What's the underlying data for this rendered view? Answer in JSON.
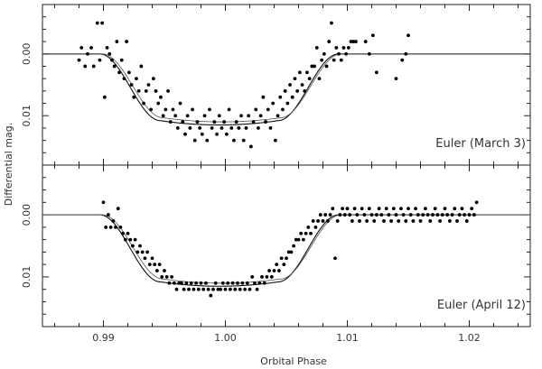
{
  "chart_data": {
    "type": "scatter",
    "xlabel": "Orbital Phase",
    "ylabel": "Differential mag.",
    "xlim": [
      0.985,
      1.025
    ],
    "x_ticks": [
      "0.99",
      "1.00",
      "1.01",
      "1.02"
    ],
    "x_tick_values": [
      0.99,
      1.0,
      1.01,
      1.02
    ],
    "y_inverted": true,
    "grid": false,
    "panels": [
      {
        "name": "Euler (March 3)",
        "ylim": [
          -0.008,
          0.018
        ],
        "y_ticks": [
          "0.00",
          "0.01"
        ],
        "y_tick_values": [
          0.0,
          0.01
        ],
        "model_depth": 0.0115,
        "model_depth_alt": 0.011,
        "points": [
          [
            0.988,
            0.001
          ],
          [
            0.9882,
            -0.001
          ],
          [
            0.9885,
            0.002
          ],
          [
            0.9887,
            0.0
          ],
          [
            0.989,
            -0.001
          ],
          [
            0.9892,
            0.002
          ],
          [
            0.9895,
            -0.005
          ],
          [
            0.9897,
            0.001
          ],
          [
            0.9899,
            -0.005
          ],
          [
            0.9901,
            0.007
          ],
          [
            0.9903,
            -0.001
          ],
          [
            0.9905,
            0.0
          ],
          [
            0.9907,
            0.001
          ],
          [
            0.9909,
            0.002
          ],
          [
            0.9911,
            -0.002
          ],
          [
            0.9913,
            0.003
          ],
          [
            0.9915,
            0.001
          ],
          [
            0.9917,
            0.004
          ],
          [
            0.9919,
            -0.002
          ],
          [
            0.9921,
            0.003
          ],
          [
            0.9923,
            0.005
          ],
          [
            0.9925,
            0.007
          ],
          [
            0.9927,
            0.004
          ],
          [
            0.9929,
            0.006
          ],
          [
            0.9931,
            0.002
          ],
          [
            0.9933,
            0.008
          ],
          [
            0.9935,
            0.006
          ],
          [
            0.9937,
            0.005
          ],
          [
            0.9939,
            0.009
          ],
          [
            0.9941,
            0.004
          ],
          [
            0.9943,
            0.006
          ],
          [
            0.9945,
            0.008
          ],
          [
            0.9947,
            0.007
          ],
          [
            0.9949,
            0.01
          ],
          [
            0.9951,
            0.009
          ],
          [
            0.9953,
            0.006
          ],
          [
            0.9955,
            0.011
          ],
          [
            0.9957,
            0.009
          ],
          [
            0.9959,
            0.01
          ],
          [
            0.9961,
            0.012
          ],
          [
            0.9963,
            0.008
          ],
          [
            0.9965,
            0.011
          ],
          [
            0.9967,
            0.013
          ],
          [
            0.9969,
            0.01
          ],
          [
            0.9971,
            0.012
          ],
          [
            0.9973,
            0.009
          ],
          [
            0.9975,
            0.014
          ],
          [
            0.9977,
            0.011
          ],
          [
            0.9979,
            0.012
          ],
          [
            0.9981,
            0.013
          ],
          [
            0.9983,
            0.01
          ],
          [
            0.9985,
            0.014
          ],
          [
            0.9987,
            0.009
          ],
          [
            0.9989,
            0.012
          ],
          [
            0.9991,
            0.011
          ],
          [
            0.9993,
            0.013
          ],
          [
            0.9995,
            0.01
          ],
          [
            0.9997,
            0.012
          ],
          [
            0.9999,
            0.011
          ],
          [
            1.0001,
            0.013
          ],
          [
            1.0003,
            0.009
          ],
          [
            1.0005,
            0.012
          ],
          [
            1.0007,
            0.014
          ],
          [
            1.0009,
            0.011
          ],
          [
            1.0011,
            0.012
          ],
          [
            1.0013,
            0.01
          ],
          [
            1.0015,
            0.014
          ],
          [
            1.0017,
            0.012
          ],
          [
            1.0019,
            0.01
          ],
          [
            1.0021,
            0.015
          ],
          [
            1.0023,
            0.011
          ],
          [
            1.0025,
            0.009
          ],
          [
            1.0027,
            0.012
          ],
          [
            1.0029,
            0.01
          ],
          [
            1.0031,
            0.007
          ],
          [
            1.0033,
            0.011
          ],
          [
            1.0035,
            0.009
          ],
          [
            1.0037,
            0.012
          ],
          [
            1.0039,
            0.008
          ],
          [
            1.0041,
            0.014
          ],
          [
            1.0043,
            0.01
          ],
          [
            1.0045,
            0.007
          ],
          [
            1.0047,
            0.009
          ],
          [
            1.0049,
            0.006
          ],
          [
            1.0051,
            0.008
          ],
          [
            1.0053,
            0.005
          ],
          [
            1.0055,
            0.007
          ],
          [
            1.0057,
            0.004
          ],
          [
            1.0059,
            0.006
          ],
          [
            1.0061,
            0.003
          ],
          [
            1.0063,
            0.005
          ],
          [
            1.0065,
            0.006
          ],
          [
            1.0067,
            0.003
          ],
          [
            1.0069,
            0.004
          ],
          [
            1.0071,
            0.002
          ],
          [
            1.0073,
            0.002
          ],
          [
            1.0075,
            -0.001
          ],
          [
            1.0077,
            0.004
          ],
          [
            1.0079,
            0.001
          ],
          [
            1.0081,
            0.0
          ],
          [
            1.0083,
            0.002
          ],
          [
            1.0085,
            -0.002
          ],
          [
            1.0087,
            -0.005
          ],
          [
            1.0089,
            0.001
          ],
          [
            1.0091,
            -0.001
          ],
          [
            1.0093,
            0.0
          ],
          [
            1.0095,
            0.001
          ],
          [
            1.0097,
            -0.001
          ],
          [
            1.0099,
            0.0
          ],
          [
            1.0101,
            -0.001
          ],
          [
            1.0103,
            -0.002
          ],
          [
            1.0105,
            -0.002
          ],
          [
            1.0107,
            -0.002
          ],
          [
            1.0115,
            -0.002
          ],
          [
            1.0118,
            0.0
          ],
          [
            1.0121,
            -0.003
          ],
          [
            1.0124,
            0.003
          ],
          [
            1.014,
            0.004
          ],
          [
            1.0145,
            0.001
          ],
          [
            1.0148,
            0.0
          ],
          [
            1.015,
            -0.003
          ]
        ]
      },
      {
        "name": "Euler (April 12)",
        "ylim": [
          -0.008,
          0.018
        ],
        "y_ticks": [
          "0.00",
          "0.01"
        ],
        "y_tick_values": [
          0.0,
          0.01
        ],
        "model_depth": 0.0115,
        "model_depth_alt": 0.011,
        "points": [
          [
            0.99,
            -0.002
          ],
          [
            0.9902,
            0.002
          ],
          [
            0.9904,
            0.0
          ],
          [
            0.9906,
            0.002
          ],
          [
            0.9908,
            0.001
          ],
          [
            0.991,
            0.002
          ],
          [
            0.9912,
            -0.001
          ],
          [
            0.9914,
            0.002
          ],
          [
            0.9916,
            0.003
          ],
          [
            0.9918,
            0.004
          ],
          [
            0.992,
            0.003
          ],
          [
            0.9922,
            0.004
          ],
          [
            0.9924,
            0.005
          ],
          [
            0.9926,
            0.004
          ],
          [
            0.9928,
            0.006
          ],
          [
            0.993,
            0.005
          ],
          [
            0.9932,
            0.006
          ],
          [
            0.9934,
            0.007
          ],
          [
            0.9936,
            0.006
          ],
          [
            0.9938,
            0.008
          ],
          [
            0.994,
            0.007
          ],
          [
            0.9942,
            0.008
          ],
          [
            0.9944,
            0.009
          ],
          [
            0.9946,
            0.008
          ],
          [
            0.9948,
            0.01
          ],
          [
            0.995,
            0.009
          ],
          [
            0.9952,
            0.01
          ],
          [
            0.9954,
            0.011
          ],
          [
            0.9956,
            0.01
          ],
          [
            0.9958,
            0.011
          ],
          [
            0.996,
            0.012
          ],
          [
            0.9962,
            0.011
          ],
          [
            0.9964,
            0.011
          ],
          [
            0.9966,
            0.012
          ],
          [
            0.9968,
            0.011
          ],
          [
            0.997,
            0.012
          ],
          [
            0.9972,
            0.011
          ],
          [
            0.9974,
            0.012
          ],
          [
            0.9976,
            0.011
          ],
          [
            0.9978,
            0.012
          ],
          [
            0.998,
            0.011
          ],
          [
            0.9982,
            0.012
          ],
          [
            0.9984,
            0.011
          ],
          [
            0.9986,
            0.012
          ],
          [
            0.9988,
            0.013
          ],
          [
            0.999,
            0.012
          ],
          [
            0.9992,
            0.011
          ],
          [
            0.9994,
            0.012
          ],
          [
            0.9996,
            0.012
          ],
          [
            0.9998,
            0.011
          ],
          [
            1.0,
            0.012
          ],
          [
            1.0002,
            0.011
          ],
          [
            1.0004,
            0.012
          ],
          [
            1.0006,
            0.011
          ],
          [
            1.0008,
            0.012
          ],
          [
            1.001,
            0.011
          ],
          [
            1.0012,
            0.012
          ],
          [
            1.0014,
            0.011
          ],
          [
            1.0016,
            0.012
          ],
          [
            1.0018,
            0.011
          ],
          [
            1.002,
            0.012
          ],
          [
            1.0022,
            0.01
          ],
          [
            1.0024,
            0.011
          ],
          [
            1.0026,
            0.012
          ],
          [
            1.0028,
            0.011
          ],
          [
            1.003,
            0.01
          ],
          [
            1.0032,
            0.011
          ],
          [
            1.0034,
            0.01
          ],
          [
            1.0036,
            0.009
          ],
          [
            1.0038,
            0.01
          ],
          [
            1.004,
            0.009
          ],
          [
            1.0042,
            0.008
          ],
          [
            1.0044,
            0.009
          ],
          [
            1.0046,
            0.007
          ],
          [
            1.0048,
            0.008
          ],
          [
            1.005,
            0.007
          ],
          [
            1.0052,
            0.006
          ],
          [
            1.0054,
            0.006
          ],
          [
            1.0056,
            0.005
          ],
          [
            1.0058,
            0.004
          ],
          [
            1.006,
            0.004
          ],
          [
            1.0062,
            0.003
          ],
          [
            1.0064,
            0.004
          ],
          [
            1.0066,
            0.003
          ],
          [
            1.0068,
            0.002
          ],
          [
            1.007,
            0.003
          ],
          [
            1.0072,
            0.001
          ],
          [
            1.0074,
            0.002
          ],
          [
            1.0076,
            0.001
          ],
          [
            1.0078,
            0.0
          ],
          [
            1.008,
            0.001
          ],
          [
            1.0082,
            0.0
          ],
          [
            1.0084,
            0.001
          ],
          [
            1.0086,
            0.0
          ],
          [
            1.0088,
            -0.001
          ],
          [
            1.009,
            0.007
          ],
          [
            1.0092,
            0.001
          ],
          [
            1.0094,
            0.0
          ],
          [
            1.0096,
            -0.001
          ],
          [
            1.0098,
            0.0
          ],
          [
            1.01,
            -0.001
          ],
          [
            1.0102,
            0.0
          ],
          [
            1.0104,
            0.001
          ],
          [
            1.0106,
            -0.001
          ],
          [
            1.0108,
            0.0
          ],
          [
            1.011,
            0.001
          ],
          [
            1.0112,
            -0.001
          ],
          [
            1.0114,
            0.0
          ],
          [
            1.0116,
            0.001
          ],
          [
            1.0118,
            -0.001
          ],
          [
            1.012,
            0.0
          ],
          [
            1.0122,
            0.001
          ],
          [
            1.0124,
            0.0
          ],
          [
            1.0126,
            -0.001
          ],
          [
            1.0128,
            0.0
          ],
          [
            1.013,
            0.001
          ],
          [
            1.0132,
            -0.001
          ],
          [
            1.0134,
            0.0
          ],
          [
            1.0136,
            0.001
          ],
          [
            1.0138,
            -0.001
          ],
          [
            1.014,
            0.0
          ],
          [
            1.0142,
            0.001
          ],
          [
            1.0144,
            -0.001
          ],
          [
            1.0146,
            0.0
          ],
          [
            1.0148,
            0.001
          ],
          [
            1.015,
            -0.001
          ],
          [
            1.0152,
            0.0
          ],
          [
            1.0154,
            0.001
          ],
          [
            1.0156,
            -0.001
          ],
          [
            1.0158,
            0.0
          ],
          [
            1.016,
            0.001
          ],
          [
            1.0162,
            0.0
          ],
          [
            1.0164,
            -0.001
          ],
          [
            1.0166,
            0.0
          ],
          [
            1.0168,
            0.001
          ],
          [
            1.017,
            0.0
          ],
          [
            1.0172,
            -0.001
          ],
          [
            1.0174,
            0.0
          ],
          [
            1.0176,
            0.001
          ],
          [
            1.0178,
            0.0
          ],
          [
            1.018,
            -0.001
          ],
          [
            1.0182,
            0.0
          ],
          [
            1.0184,
            0.001
          ],
          [
            1.0186,
            0.0
          ],
          [
            1.0188,
            -0.001
          ],
          [
            1.019,
            0.001
          ],
          [
            1.0192,
            0.0
          ],
          [
            1.0194,
            -0.001
          ],
          [
            1.0196,
            0.0
          ],
          [
            1.0198,
            0.001
          ],
          [
            1.02,
            0.0
          ],
          [
            1.0202,
            -0.001
          ],
          [
            1.0204,
            0.0
          ],
          [
            1.0206,
            -0.002
          ]
        ]
      }
    ]
  }
}
